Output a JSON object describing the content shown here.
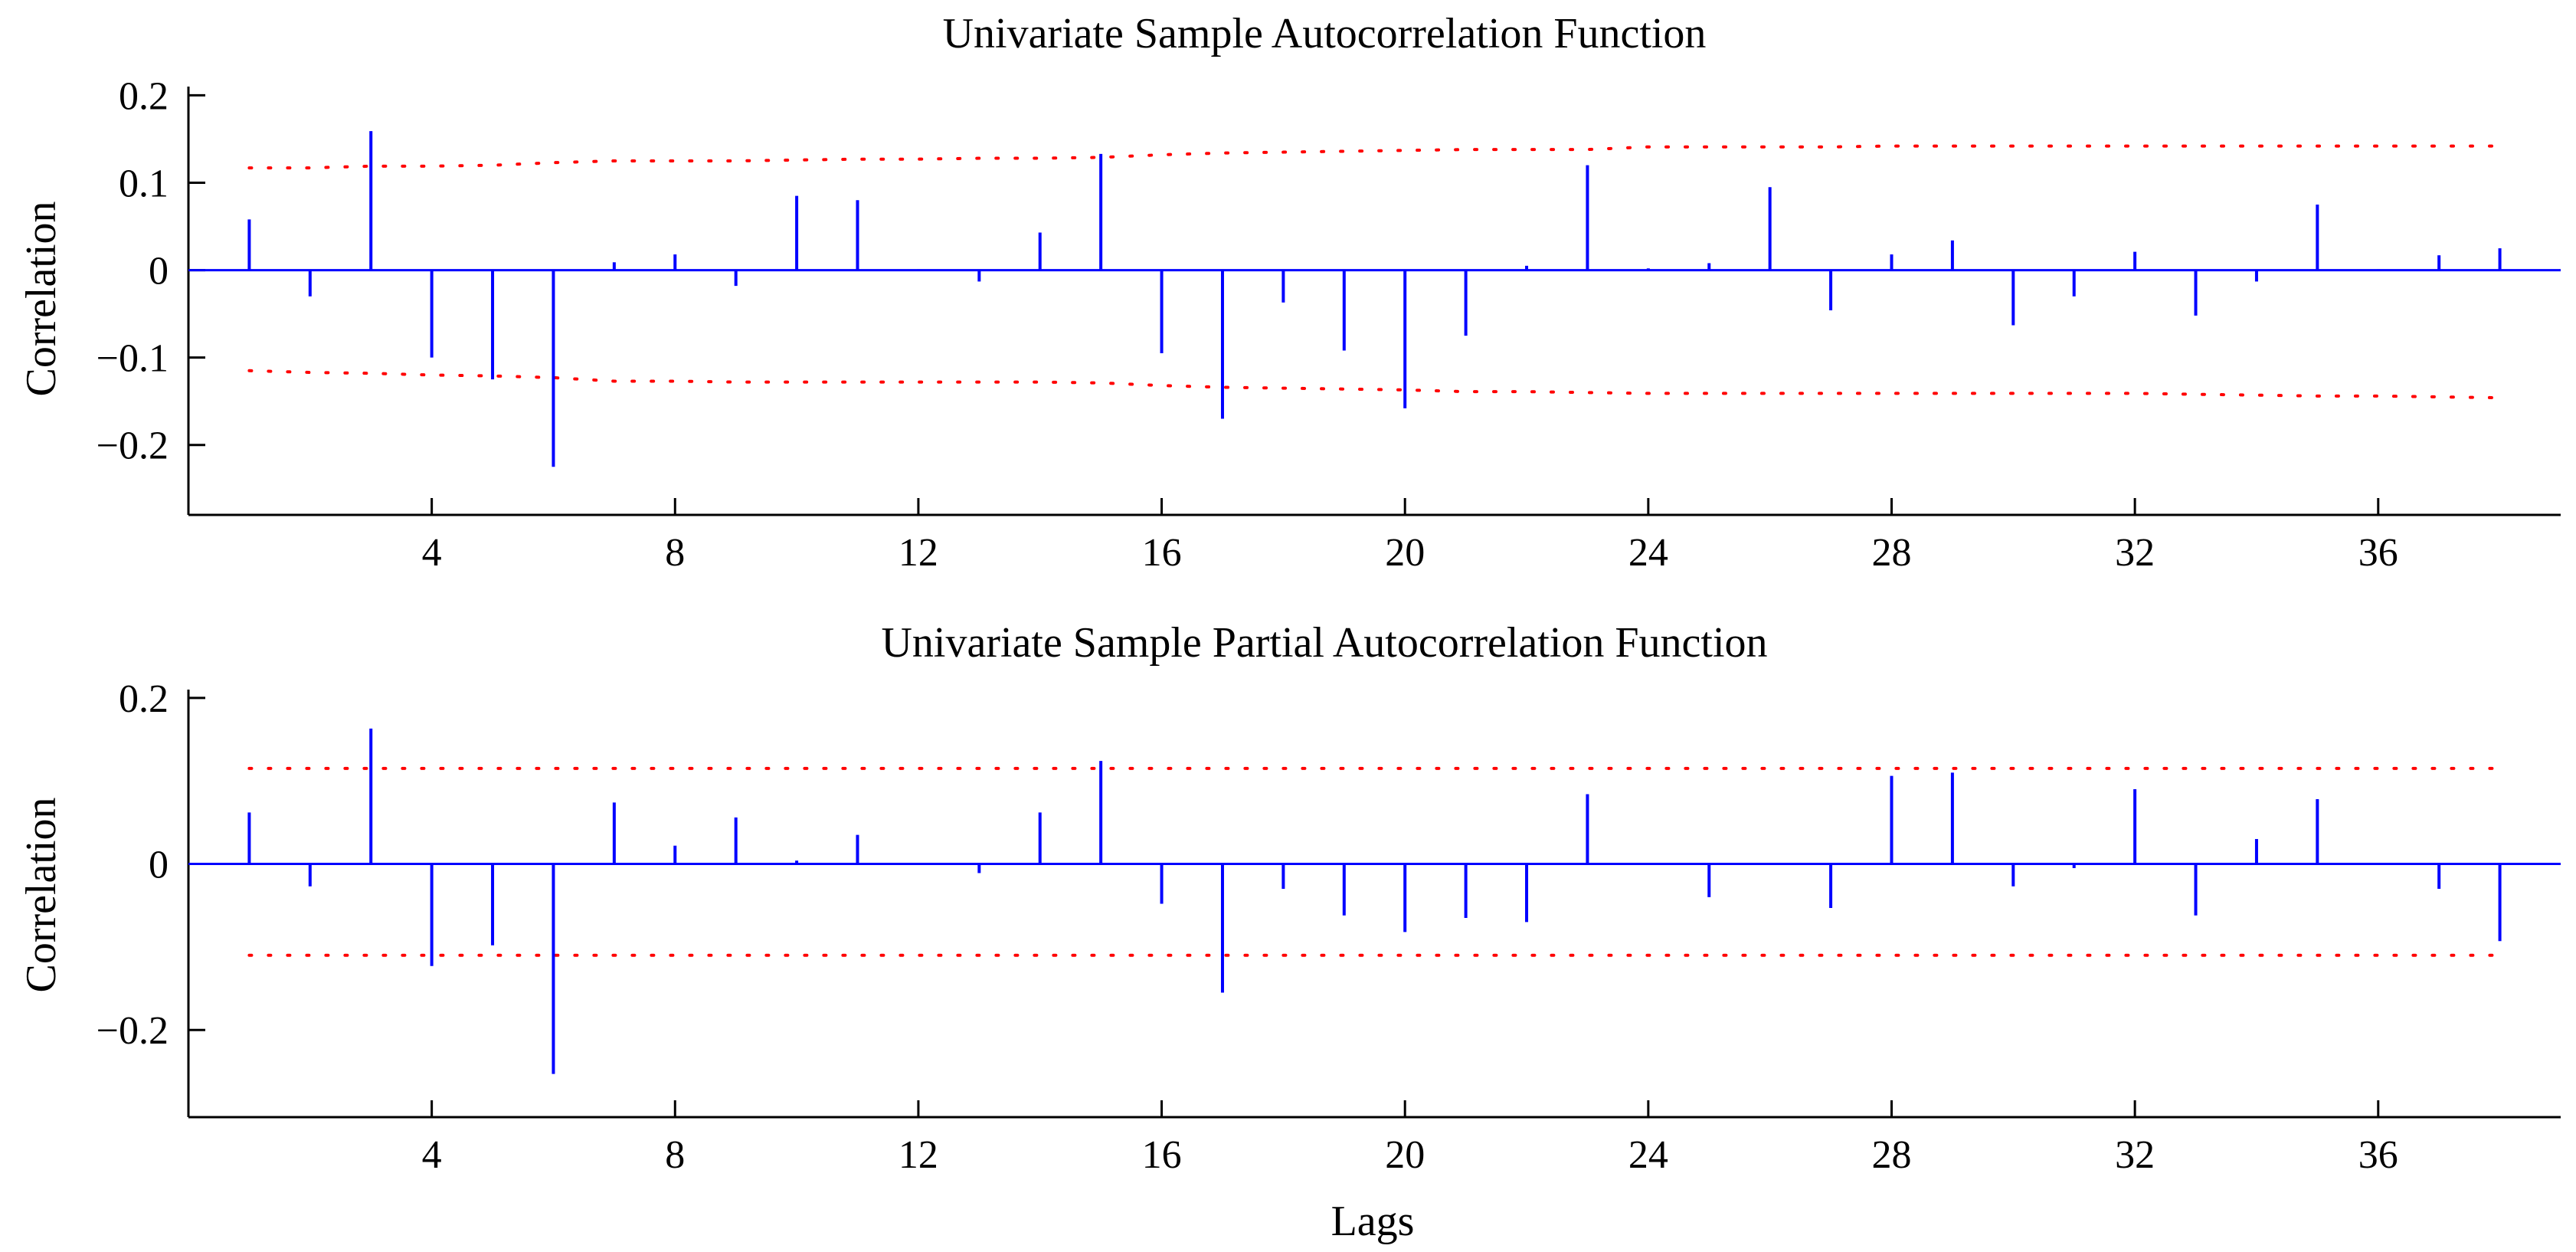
{
  "colors": {
    "stem": "#0000ff",
    "bounds": "#ff0000",
    "axis": "#000000"
  },
  "chart_data": [
    {
      "type": "stem",
      "title": "Univariate Sample Autocorrelation Function",
      "ylabel": "Correlation",
      "xlabel": "",
      "xlim": [
        0,
        39
      ],
      "ylim": [
        -0.28,
        0.21
      ],
      "xticks": [
        4,
        8,
        12,
        16,
        20,
        24,
        28,
        32,
        36
      ],
      "xtick_labels": [
        "4",
        "8",
        "12",
        "16",
        "20",
        "24",
        "28",
        "32",
        "36"
      ],
      "yticks": [
        0.2,
        0.1,
        0,
        -0.1,
        -0.2
      ],
      "ytick_labels": [
        "0.2",
        "0.1",
        "0",
        "−0.1",
        "−0.2"
      ],
      "grid": false,
      "lags": [
        1,
        2,
        3,
        4,
        5,
        6,
        7,
        8,
        9,
        10,
        11,
        12,
        13,
        14,
        15,
        16,
        17,
        18,
        19,
        20,
        21,
        22,
        23,
        24,
        25,
        26,
        27,
        28,
        29,
        30,
        31,
        32,
        33,
        34,
        35,
        36,
        37,
        38
      ],
      "values": [
        0.058,
        -0.03,
        0.159,
        -0.1,
        -0.125,
        -0.225,
        0.009,
        0.018,
        -0.018,
        0.085,
        0.08,
        0.001,
        -0.013,
        0.043,
        0.133,
        -0.095,
        -0.17,
        -0.037,
        -0.092,
        -0.158,
        -0.075,
        0.005,
        0.12,
        0.002,
        0.008,
        0.095,
        -0.046,
        0.018,
        0.034,
        -0.063,
        -0.03,
        0.021,
        -0.052,
        -0.013,
        0.075,
        0.001,
        0.017,
        0.025
      ],
      "upper_bound": [
        0.117,
        0.117,
        0.119,
        0.119,
        0.12,
        0.123,
        0.125,
        0.125,
        0.125,
        0.126,
        0.127,
        0.127,
        0.128,
        0.128,
        0.129,
        0.132,
        0.134,
        0.135,
        0.136,
        0.137,
        0.138,
        0.138,
        0.138,
        0.141,
        0.141,
        0.141,
        0.141,
        0.142,
        0.142,
        0.142,
        0.142,
        0.142,
        0.142,
        0.142,
        0.142,
        0.142,
        0.142,
        0.142
      ],
      "lower_bound": [
        -0.115,
        -0.117,
        -0.118,
        -0.12,
        -0.121,
        -0.123,
        -0.127,
        -0.127,
        -0.128,
        -0.128,
        -0.128,
        -0.128,
        -0.128,
        -0.128,
        -0.129,
        -0.132,
        -0.134,
        -0.135,
        -0.136,
        -0.137,
        -0.139,
        -0.139,
        -0.14,
        -0.141,
        -0.141,
        -0.141,
        -0.141,
        -0.141,
        -0.141,
        -0.141,
        -0.141,
        -0.141,
        -0.142,
        -0.143,
        -0.144,
        -0.144,
        -0.145,
        -0.146
      ]
    },
    {
      "type": "stem",
      "title": "Univariate Sample Partial Autocorrelation Function",
      "ylabel": "Correlation",
      "xlabel": "Lags",
      "xlim": [
        0,
        39
      ],
      "ylim": [
        -0.305,
        0.21
      ],
      "xticks": [
        4,
        8,
        12,
        16,
        20,
        24,
        28,
        32,
        36
      ],
      "xtick_labels": [
        "4",
        "8",
        "12",
        "16",
        "20",
        "24",
        "28",
        "32",
        "36"
      ],
      "yticks": [
        0.2,
        0,
        -0.2
      ],
      "ytick_labels": [
        "0.2",
        "0",
        "−0.2"
      ],
      "grid": false,
      "lags": [
        1,
        2,
        3,
        4,
        5,
        6,
        7,
        8,
        9,
        10,
        11,
        12,
        13,
        14,
        15,
        16,
        17,
        18,
        19,
        20,
        21,
        22,
        23,
        24,
        25,
        26,
        27,
        28,
        29,
        30,
        31,
        32,
        33,
        34,
        35,
        36,
        37,
        38
      ],
      "values": [
        0.062,
        -0.027,
        0.163,
        -0.123,
        -0.098,
        -0.253,
        0.074,
        0.022,
        0.056,
        0.004,
        0.035,
        0.001,
        -0.011,
        0.062,
        0.124,
        -0.048,
        -0.155,
        -0.03,
        -0.062,
        -0.082,
        -0.065,
        -0.07,
        0.084,
        -0.001,
        -0.04,
        0.001,
        -0.053,
        0.106,
        0.11,
        -0.027,
        -0.005,
        0.09,
        -0.062,
        0.03,
        0.078,
        0.001,
        -0.03,
        -0.093
      ],
      "upper_bound": [
        0.115,
        0.115,
        0.115,
        0.115,
        0.115,
        0.115,
        0.115,
        0.115,
        0.115,
        0.115,
        0.115,
        0.115,
        0.115,
        0.115,
        0.115,
        0.115,
        0.115,
        0.115,
        0.115,
        0.115,
        0.115,
        0.115,
        0.115,
        0.115,
        0.115,
        0.115,
        0.115,
        0.115,
        0.115,
        0.115,
        0.115,
        0.115,
        0.115,
        0.115,
        0.115,
        0.115,
        0.115,
        0.115
      ],
      "lower_bound": [
        -0.11,
        -0.11,
        -0.11,
        -0.11,
        -0.11,
        -0.11,
        -0.11,
        -0.11,
        -0.11,
        -0.11,
        -0.11,
        -0.11,
        -0.11,
        -0.11,
        -0.11,
        -0.11,
        -0.11,
        -0.11,
        -0.11,
        -0.11,
        -0.11,
        -0.11,
        -0.11,
        -0.11,
        -0.11,
        -0.11,
        -0.11,
        -0.11,
        -0.11,
        -0.11,
        -0.11,
        -0.11,
        -0.11,
        -0.11,
        -0.11,
        -0.11,
        -0.11,
        -0.11
      ]
    }
  ]
}
